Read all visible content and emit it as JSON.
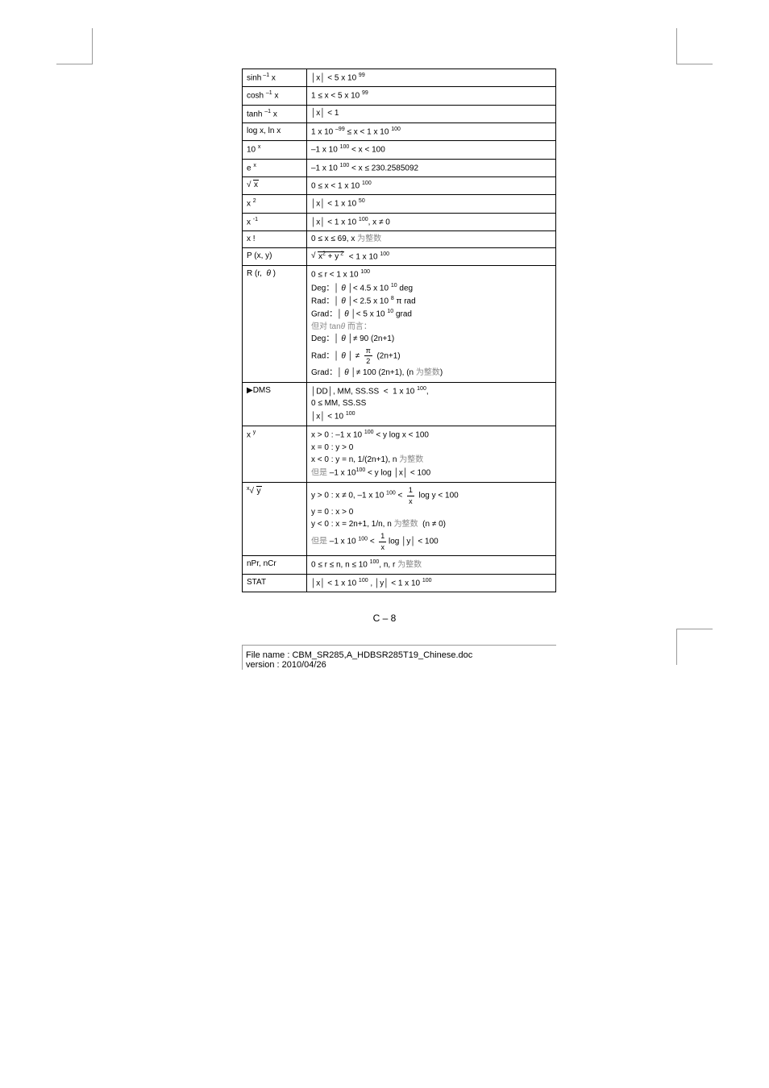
{
  "pageNumber": "C – 8",
  "footer": {
    "filename": "File name : CBM_SR285,A_HDBSR285T19_Chinese.doc",
    "version": "version : 2010/04/26"
  },
  "rows": [
    {
      "fn_html": "sinh<span class='sup'> –1</span> x",
      "range_html": "│x│ &lt; 5 x 10 <span class='sup'>99</span>"
    },
    {
      "fn_html": "cosh <span class='sup'>–1</span> x",
      "range_html": "1 ≤ x &lt; 5 x 10 <span class='sup'>99</span>"
    },
    {
      "fn_html": "tanh <span class='sup'>–1</span> x",
      "range_html": "│x│ &lt; 1"
    },
    {
      "fn_html": "log x, ln x",
      "range_html": "1 x 10 <span class='sup'>–99</span> ≤ x &lt; 1 x 10 <span class='sup'>100</span>"
    },
    {
      "fn_html": "10 <span class='sup'>x</span>",
      "range_html": "–1 x 10 <span class='sup'>100</span> &lt; x &lt; 100"
    },
    {
      "fn_html": "e <span class='sup'>x</span>",
      "range_html": "–1 x 10 <span class='sup'>100</span> &lt; x ≤ 230.2585092"
    },
    {
      "fn_html": "<span class='sqrt'><span class='sqrt-body'>x</span></span>",
      "range_html": "0 ≤ x &lt; 1 x 10 <span class='sup'>100</span>"
    },
    {
      "fn_html": "x <span class='sup'>2</span>",
      "range_html": "│x│ &lt; 1 x 10 <span class='sup'>50</span>"
    },
    {
      "fn_html": "x <span class='sup'>-1</span>",
      "range_html": "│x│ &lt; 1 x 10 <span class='sup'>100</span>, x ≠ 0"
    },
    {
      "fn_html": "x !",
      "range_html": "0 ≤ x ≤ 69, x <span class='gray'>为整数</span>"
    },
    {
      "fn_html": "P (x, y)",
      "range_html": "<span class='sqrt'><span class='sqrt-body'>x<span class='sup'>2</span> + y<span class='sup'> 2</span></span></span> &nbsp;&lt; 1 x 10 <span class='sup'>100</span>"
    },
    {
      "fn_html": "R (r, &nbsp;<i>θ</i> )",
      "range_html": "<span class='cell-line'>0 ≤ r &lt; 1 x 10 <span class='sup'>100</span></span><span class='cell-line'>Deg：│ <i>θ</i> │&lt; 4.5 x 10 <span class='sup'>10</span> deg</span><span class='cell-line'>Rad：│ <i>θ</i> │&lt; 2.5 x 10 <span class='sup'>8</span> π rad</span><span class='cell-line'>Grad：│ <i>θ</i> │&lt; 5 x 10 <span class='sup'>10</span> grad</span><span class='cell-line gray'>但对 tan<i>θ</i> 而言：</span><span class='cell-line'>Deg：│ <i>θ</i> │≠ 90 (2n+1)</span><span class='cell-line'>Rad：│ <i>θ</i> │ ≠ &nbsp;<span class='frac'><span class='num'>π</span><span class='den'>2</span></span>&nbsp; (2n+1)</span><span class='cell-line'>Grad：│ <i>θ</i> │≠ 100 (2n+1), (n <span class='gray'>为整数</span>)</span>"
    },
    {
      "fn_html": "▶DMS",
      "range_html": "<span class='cell-line'>│DD│, MM, SS.SS &nbsp;&lt; &nbsp;1 x 10 <span class='sup'>100</span>,</span><span class='cell-line'>0 ≤ MM, SS.SS</span><span class='cell-line'>│x│ &lt; 10 <span class='sup'>100</span></span>"
    },
    {
      "fn_html": "x <span class='sup'>y</span>",
      "range_html": "<span class='cell-line'>x &gt; 0 : –1 x 10 <span class='sup'>100</span> &lt; y log x &lt; 100</span><span class='cell-line'>x = 0 : y &gt; 0</span><span class='cell-line'>x &lt; 0 : y = n, 1/(2n+1), n <span class='gray'>为整数</span></span><span class='cell-line'><span class='gray'>但是</span> –1 x 10<span class='sup'>100</span> &lt; y log │x│ &lt; 100</span>"
    },
    {
      "fn_html": "<span style='font-size:7px;vertical-align:4px;'>x</span><span class='sqrt'><span class='sqrt-body'>y</span></span>",
      "range_html": "<span class='cell-line'>y &gt; 0 : x ≠ 0, –1 x 10 <span class='sup'>100</span> &lt; &nbsp;<span class='frac'><span class='num'>1</span><span class='den'>x</span></span>&nbsp; log y &lt; 100</span><span class='cell-line'>y = 0 : x &gt; 0</span><span class='cell-line'>y &lt; 0 : x = 2n+1, 1/n, n <span class='gray'>为整数</span> &nbsp;(n ≠ 0)</span><span class='cell-line'><span class='gray'>但是</span> –1 x 10 <span class='sup'>100</span> &lt; &nbsp;<span class='frac'><span class='num'>1</span><span class='den'>x</span></span> log │y│ &lt; 100</span>"
    },
    {
      "fn_html": "nPr, nCr",
      "range_html": "0 ≤ r ≤ n, n ≤ 10 <span class='sup'>100</span>, n, r <span class='gray'>为整数</span>"
    },
    {
      "fn_html": "STAT",
      "range_html": "│x│ &lt; 1 x 10 <span class='sup'>100</span> , │y│ &lt; 1 x 10 <span class='sup'>100</span>"
    }
  ]
}
